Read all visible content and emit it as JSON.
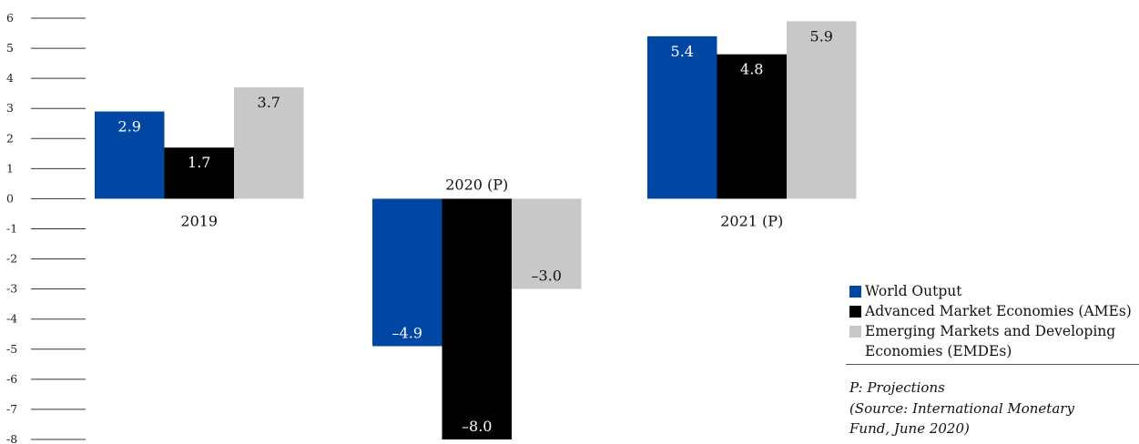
{
  "chart_data": {
    "type": "bar",
    "categories": [
      "2019",
      "2020 (P)",
      "2021 (P)"
    ],
    "series": [
      {
        "name": "World Output",
        "color": "#0047a3",
        "values": [
          2.9,
          -4.9,
          5.4
        ],
        "labels": [
          "2.9",
          "–4.9",
          "5.4"
        ]
      },
      {
        "name": "Advanced Market Economies (AMEs)",
        "color": "#000000",
        "values": [
          1.7,
          -8.0,
          4.8
        ],
        "labels": [
          "1.7",
          "–8.0",
          "4.8"
        ]
      },
      {
        "name": "Emerging Markets and Developing Economies (EMDEs)",
        "color": "#c8c8c8",
        "values": [
          3.7,
          -3.0,
          5.9
        ],
        "labels": [
          "3.7",
          "–3.0",
          "5.9"
        ]
      }
    ],
    "y_ticks": [
      "6",
      "5",
      "4",
      "3",
      "2",
      "1",
      "0",
      "-1",
      "-2",
      "-3",
      "-4",
      "-5",
      "-6",
      "-7",
      "-8"
    ],
    "ylim": [
      -8,
      6
    ],
    "legend_position": "bottom-right"
  },
  "legend": {
    "items": [
      {
        "label": "World Output",
        "color": "#0047a3"
      },
      {
        "label": "Advanced Market Economies (AMEs)",
        "color": "#000000"
      },
      {
        "label": "Emerging Markets and Developing Economies (EMDEs)",
        "color": "#c8c8c8"
      }
    ]
  },
  "note": {
    "line1": "P: Projections",
    "line2": "(Source: International Monetary Fund, June 2020)"
  }
}
